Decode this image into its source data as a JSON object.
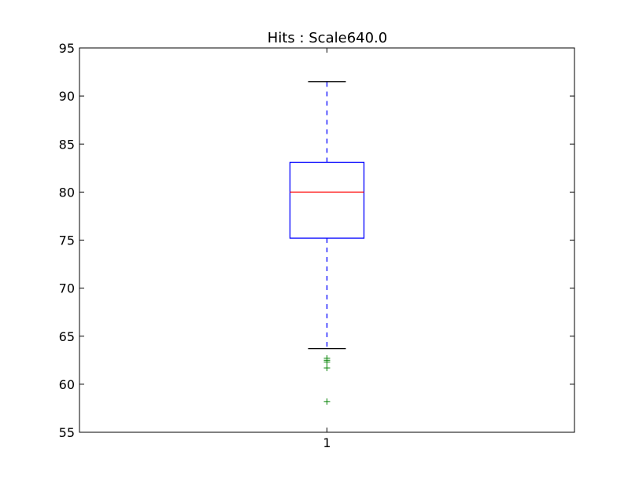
{
  "chart_data": {
    "type": "box",
    "title": "Hits : Scale640.0",
    "xlabel": "",
    "ylabel": "",
    "ylim": [
      55,
      95
    ],
    "yticks": [
      55,
      60,
      65,
      70,
      75,
      80,
      85,
      90,
      95
    ],
    "categories": [
      "1"
    ],
    "grid": false,
    "legend": "none",
    "boxes": [
      {
        "category": "1",
        "whisker_low": 63.7,
        "q1": 75.2,
        "median": 80.0,
        "q3": 83.1,
        "whisker_high": 91.5,
        "outliers": [
          62.7,
          62.5,
          62.3,
          61.7,
          58.2
        ]
      }
    ],
    "colors": {
      "box": "#0000ff",
      "median": "#ff0000",
      "whisker": "#0000ff",
      "cap": "#000000",
      "outlier": "#008000"
    }
  }
}
